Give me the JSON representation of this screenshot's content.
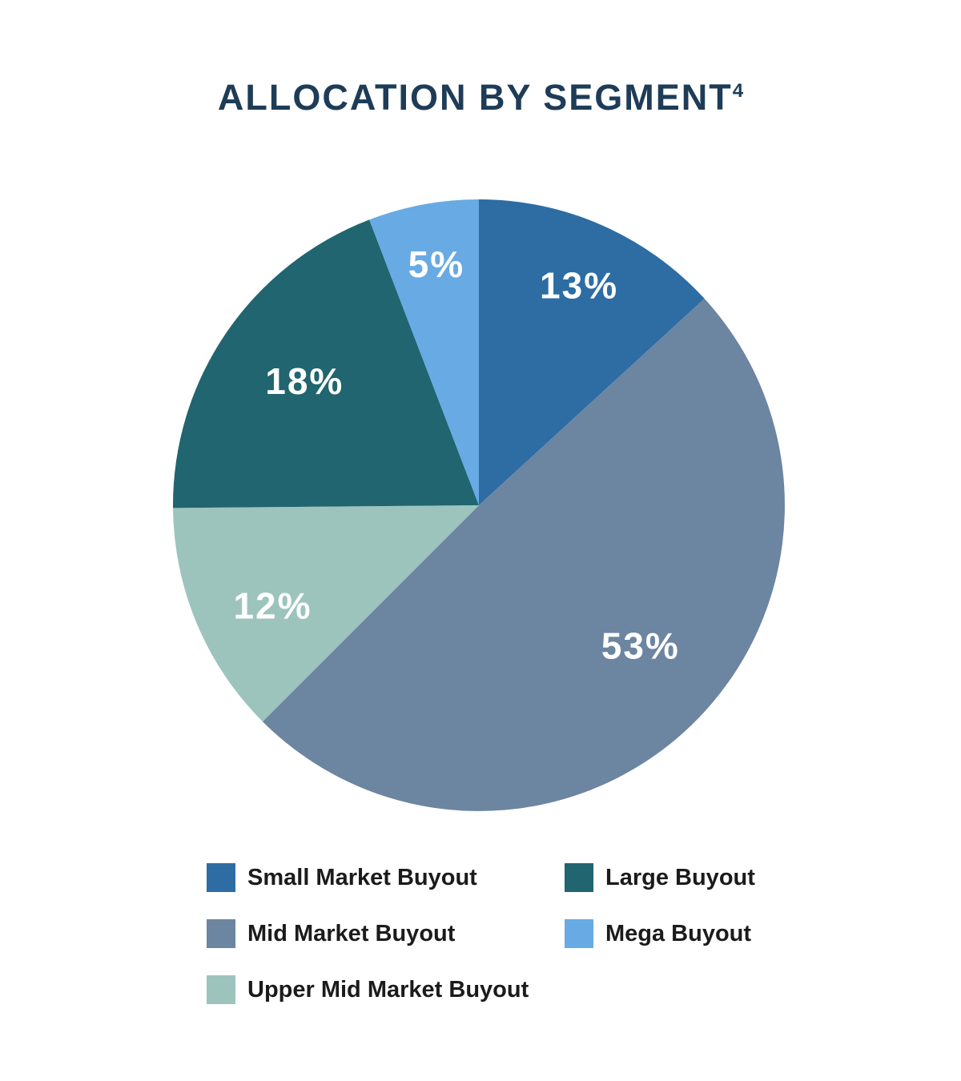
{
  "chart_data": {
    "type": "pie",
    "title": "ALLOCATION BY SEGMENT",
    "footnote_marker": "4",
    "title_color": "#1e3c57",
    "background": "#ffffff",
    "start_angle_deg": 0,
    "direction": "clockwise",
    "label_color": "#ffffff",
    "slices": [
      {
        "label": "Small Market Buyout",
        "value_pct": 13,
        "display": "13%",
        "color": "#2d6da3",
        "sweep_deg": 47.5,
        "label_angle_deg": 24.5,
        "label_radius_frac": 0.79
      },
      {
        "label": "Mid Market Buyout",
        "value_pct": 53,
        "display": "53%",
        "color": "#6c85a1",
        "sweep_deg": 177.5,
        "label_angle_deg": 131,
        "label_radius_frac": 0.7
      },
      {
        "label": "Upper Mid Market Buyout",
        "value_pct": 12,
        "display": "12%",
        "color": "#9cc4bd",
        "sweep_deg": 44.5,
        "label_angle_deg": 244,
        "label_radius_frac": 0.75
      },
      {
        "label": "Large Buyout",
        "value_pct": 18,
        "display": "18%",
        "color": "#20656f",
        "sweep_deg": 69.5,
        "label_angle_deg": 305.5,
        "label_radius_frac": 0.7
      },
      {
        "label": "Mega Buyout",
        "value_pct": 5,
        "display": "5%",
        "color": "#67aae4",
        "sweep_deg": 21,
        "label_angle_deg": 350,
        "label_radius_frac": 0.8
      }
    ],
    "legend": {
      "position": "bottom",
      "columns": 2,
      "text_color": "#1b1b1b",
      "order": [
        "Small Market Buyout",
        "Large Buyout",
        "Mid Market Buyout",
        "Mega Buyout",
        "Upper Mid Market Buyout"
      ]
    }
  }
}
